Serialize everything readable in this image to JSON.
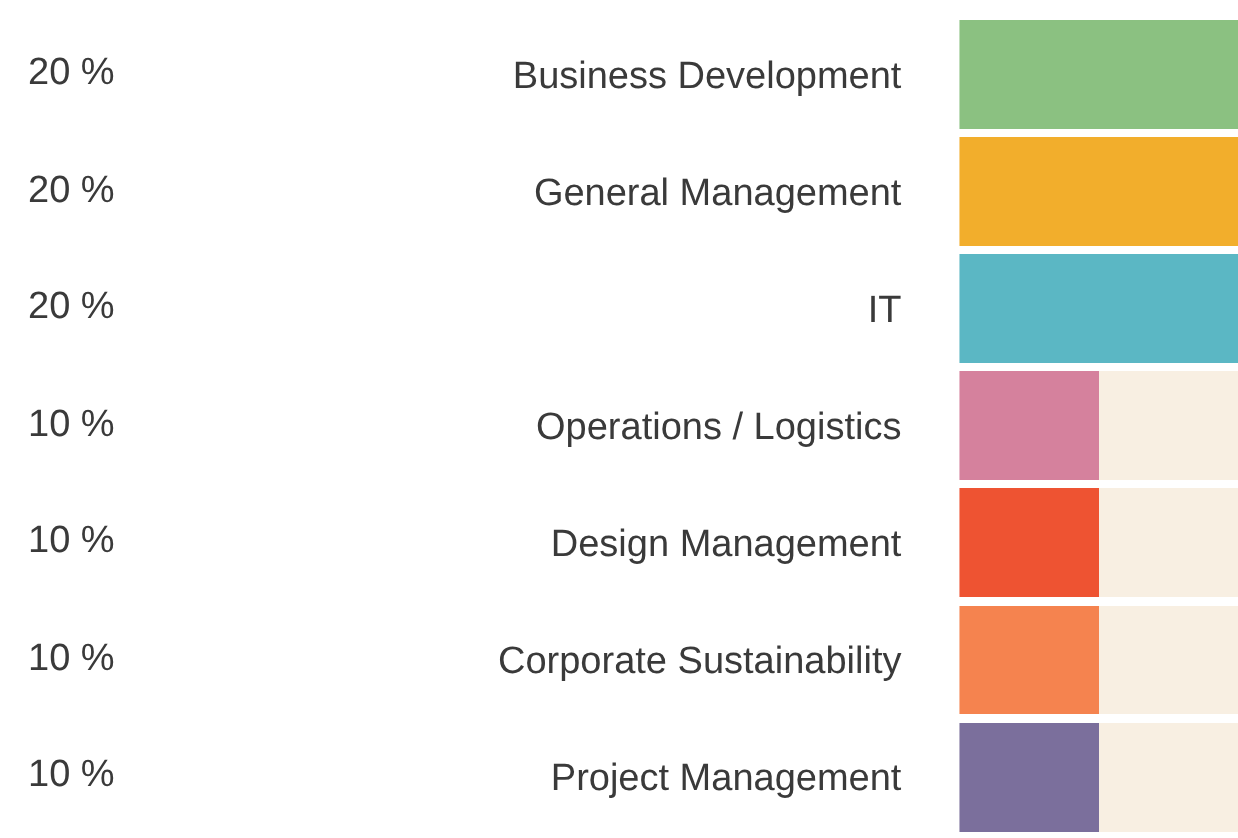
{
  "chart_data": {
    "type": "bar",
    "orientation": "horizontal",
    "stacked": true,
    "categories": [
      "Business Development",
      "General Management",
      "IT",
      "Operations / Logistics",
      "Design Management",
      "Corporate Sustainability",
      "Project Management"
    ],
    "series": [
      {
        "colors": [
          "#8bc181",
          "#f2ae2c",
          "#5bb7c4",
          "#d5819d",
          "#ee5332",
          "#f5834f",
          "#7b6f9c"
        ],
        "values": [
          20,
          20,
          20,
          10,
          10,
          10,
          10
        ],
        "value_labels": [
          "20 %",
          "20 %",
          "20 %",
          "10 %",
          "10 %",
          "10 %",
          "10 %"
        ]
      },
      {
        "color": "#f8efe2",
        "values": [
          0,
          0,
          0,
          10,
          10,
          10,
          10
        ]
      }
    ],
    "tick_labels": "y"
  }
}
